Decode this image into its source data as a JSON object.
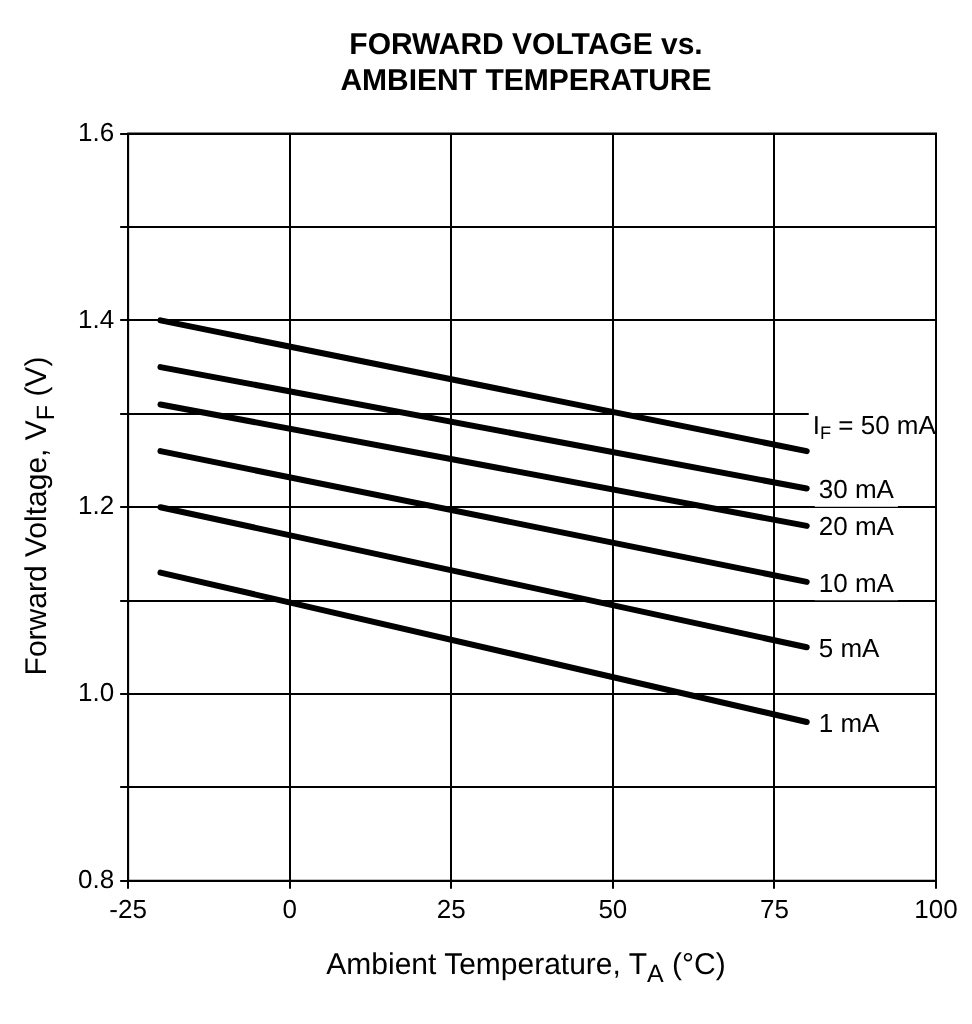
{
  "chart_data": {
    "type": "line",
    "title": "FORWARD VOLTAGE vs.\nAMBIENT  TEMPERATURE",
    "xlabel": "Ambient Temperature, T$_{A}$ (°C)",
    "ylabel": "Forward Voltage, V$_{F}$ (V)",
    "x": [
      -20,
      80
    ],
    "xlim": [
      -25,
      100
    ],
    "xticks": [
      -25,
      0,
      25,
      50,
      75,
      100
    ],
    "ylim": [
      0.8,
      1.6
    ],
    "yticks": [
      0.8,
      {
        "value": 0.9,
        "label": null
      },
      {
        "value": 1,
        "label": "1.0"
      },
      {
        "value": 1.1,
        "label": null
      },
      1.2,
      {
        "value": 1.3,
        "label": null
      },
      1.4,
      {
        "value": 1.5,
        "label": null
      },
      1.6
    ],
    "grid": true,
    "legend": false,
    "marker": "none",
    "line_style": "solid",
    "series": [
      {
        "name": "I$_{F}$ = 50 mA",
        "color": "#000000",
        "values": [
          1.4,
          1.26
        ]
      },
      {
        "name": "30 mA",
        "color": "#000000",
        "values": [
          1.35,
          1.22
        ]
      },
      {
        "name": "20 mA",
        "color": "#000000",
        "values": [
          1.31,
          1.18
        ]
      },
      {
        "name": "10 mA",
        "color": "#000000",
        "values": [
          1.26,
          1.12
        ]
      },
      {
        "name": "5 mA",
        "color": "#000000",
        "values": [
          1.2,
          1.05
        ]
      },
      {
        "name": "1 mA",
        "color": "#000000",
        "values": [
          1.13,
          0.97
        ]
      }
    ]
  }
}
